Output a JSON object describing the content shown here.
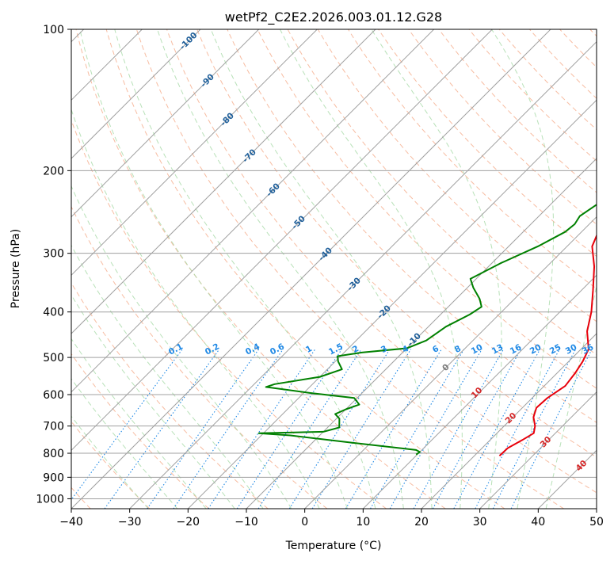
{
  "chart_data": {
    "type": "line",
    "title": "wetPf2_C2E2.2026.003.01.12.G28",
    "xlabel": "Temperature (°C)",
    "ylabel": "Pressure (hPa)",
    "xlim": [
      -40,
      50
    ],
    "ylim": [
      1050,
      100
    ],
    "x_ticks": [
      "−40",
      "−30",
      "−20",
      "−10",
      "0",
      "10",
      "20",
      "30",
      "40",
      "50"
    ],
    "y_ticks": [
      "100",
      "200",
      "300",
      "400",
      "500",
      "600",
      "700",
      "800",
      "900",
      "1000"
    ],
    "dry_adiabat_labels": [
      "-100",
      "-90",
      "-80",
      "-70",
      "-60",
      "-50",
      "-40",
      "-30",
      "-20",
      "-10",
      "0",
      "10",
      "20",
      "30",
      "40"
    ],
    "mixing_ratio_labels": [
      "0.1",
      "0.2",
      "0.4",
      "0.6",
      "1",
      "1.5",
      "2",
      "3",
      "4",
      "6",
      "8",
      "10",
      "13",
      "16",
      "20",
      "25",
      "30",
      "36"
    ],
    "colors": {
      "temperature": "#e8000b",
      "dewpoint": "#008000",
      "dry_adiabat": "#f4a582",
      "moist_adiabat": "#a6d9a6",
      "mixing_ratio": "#1e88e5",
      "isotherm": "#a0a0a0",
      "dry_label": "#1f5f9a",
      "warm_label": "#d62728"
    },
    "series": [
      {
        "name": "Temperature",
        "points": [
          [
            24.3,
            810
          ],
          [
            24.4,
            780
          ],
          [
            25.5,
            750
          ],
          [
            26.3,
            725
          ],
          [
            25.3,
            700
          ],
          [
            23.5,
            670
          ],
          [
            22.4,
            640
          ],
          [
            22.6,
            610
          ],
          [
            23.6,
            575
          ],
          [
            23.1,
            540
          ],
          [
            22.4,
            510
          ],
          [
            21.3,
            480
          ],
          [
            18.0,
            440
          ],
          [
            15.4,
            400
          ],
          [
            12.0,
            360
          ],
          [
            8.1,
            320
          ],
          [
            4.3,
            290
          ],
          [
            2.1,
            260
          ],
          [
            0.1,
            230
          ],
          [
            -1.4,
            205
          ],
          [
            -2.5,
            185
          ],
          [
            -3.2,
            170
          ],
          [
            -3.6,
            160
          ],
          [
            -3.3,
            150
          ],
          [
            -1.8,
            143
          ],
          [
            -0.8,
            135
          ],
          [
            -0.2,
            128
          ],
          [
            0.0,
            122
          ],
          [
            0.2,
            115
          ],
          [
            1.0,
            108
          ],
          [
            3.0,
            100
          ]
        ]
      },
      {
        "name": "Dewpoint",
        "points": [
          [
            9.8,
            805
          ],
          [
            10.0,
            795
          ],
          [
            9.0,
            787
          ],
          [
            -3.0,
            760
          ],
          [
            -15.0,
            733
          ],
          [
            -20.8,
            725
          ],
          [
            -10.0,
            720
          ],
          [
            -8.0,
            705
          ],
          [
            -9.5,
            675
          ],
          [
            -11.0,
            660
          ],
          [
            -10.0,
            645
          ],
          [
            -8.5,
            630
          ],
          [
            -10.5,
            610
          ],
          [
            -19.0,
            595
          ],
          [
            -27.5,
            578
          ],
          [
            -26.5,
            570
          ],
          [
            -20.0,
            550
          ],
          [
            -17.5,
            530
          ],
          [
            -19.5,
            510
          ],
          [
            -20.5,
            497
          ],
          [
            -17.0,
            488
          ],
          [
            -10.0,
            478
          ],
          [
            -8.0,
            460
          ],
          [
            -7.0,
            430
          ],
          [
            -5.0,
            405
          ],
          [
            -4.3,
            390
          ],
          [
            -6.0,
            375
          ],
          [
            -9.0,
            355
          ],
          [
            -11.0,
            340
          ],
          [
            -8.5,
            315
          ],
          [
            -5.0,
            290
          ],
          [
            -2.8,
            270
          ],
          [
            -2.5,
            260
          ],
          [
            -3.0,
            250
          ],
          [
            -2.0,
            235
          ],
          [
            -0.4,
            220
          ],
          [
            -0.2,
            205
          ],
          [
            -0.7,
            195
          ],
          [
            -1.2,
            185
          ],
          [
            -0.6,
            175
          ],
          [
            -0.4,
            162
          ],
          [
            -0.5,
            150
          ],
          [
            -2.0,
            142
          ],
          [
            -4.0,
            136
          ],
          [
            -4.9,
            131
          ],
          [
            -4.3,
            124
          ],
          [
            -2.8,
            115
          ],
          [
            -1.2,
            108
          ],
          [
            -0.8,
            100
          ]
        ]
      }
    ]
  }
}
